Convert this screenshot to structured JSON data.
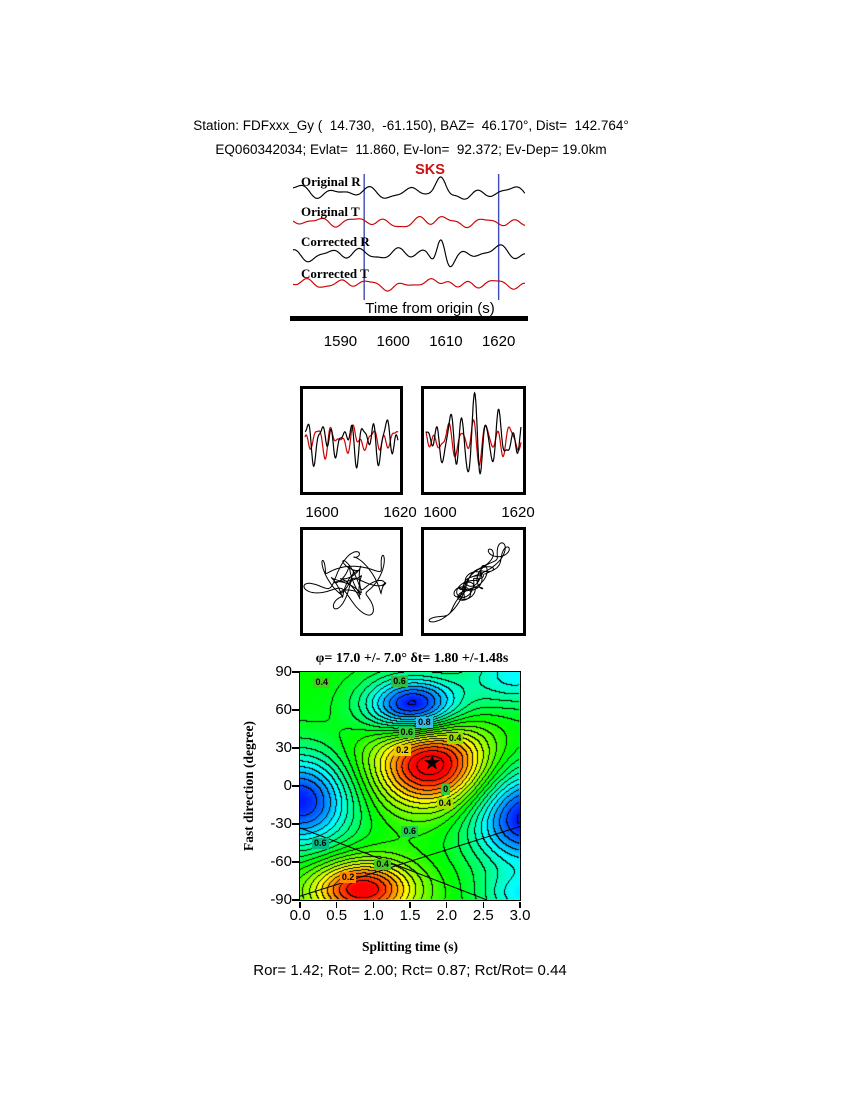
{
  "header": {
    "line1": "Station: FDFxxx_Gy (  14.730,  -61.150), BAZ=  46.170°, Dist=  142.764°",
    "line2": "EQ060342034; Evlat=  11.860, Ev-lon=  92.372; Ev-Dep= 19.0km"
  },
  "waveform_panel": {
    "phase_label": "SKS",
    "phase_color": "#cc1111",
    "xlabel": "Time from origin (s)",
    "traces": [
      {
        "label": "Original R",
        "color": "#000000"
      },
      {
        "label": "Original T",
        "color": "#cc0000"
      },
      {
        "label": "Corrected R",
        "color": "#000000"
      },
      {
        "label": "Corrected T",
        "color": "#cc0000"
      }
    ],
    "time_axis": {
      "min": 1581,
      "max": 1625,
      "ticks": [
        1590,
        1600,
        1610,
        1620
      ]
    },
    "window": [
      1594.5,
      1620.0
    ],
    "window_color": "#3b4bb8"
  },
  "zoom_boxes": {
    "tick_labels": [
      "1600",
      "1620",
      "1600",
      "1620"
    ]
  },
  "contour": {
    "title": "φ= 17.0 +/- 7.0° δt= 1.80 +/-1.48s",
    "xlabel": "Splitting time (s)",
    "ylabel": "Fast direction (degree)",
    "xrange": [
      0,
      3
    ],
    "yrange": [
      -90,
      90
    ],
    "xticks": [
      "0.0",
      "0.5",
      "1.0",
      "1.5",
      "2.0",
      "2.5",
      "3.0"
    ],
    "yticks": [
      90,
      60,
      30,
      0,
      -30,
      -60,
      -90
    ],
    "best": {
      "dt": 1.8,
      "phi": 17
    },
    "field_extrema": [
      {
        "dt": 1.8,
        "phi": 17,
        "amp": 1.15,
        "sdt": 0.55,
        "sphi": 24
      },
      {
        "dt": 0.85,
        "phi": -82,
        "amp": 1.05,
        "sdt": 0.5,
        "sphi": 16
      },
      {
        "dt": 1.55,
        "phi": 63,
        "amp": -1.1,
        "sdt": 0.45,
        "sphi": 16
      },
      {
        "dt": 0.0,
        "phi": -12,
        "amp": -0.95,
        "sdt": 0.5,
        "sphi": 26
      },
      {
        "dt": 3.1,
        "phi": -25,
        "amp": -1.0,
        "sdt": 0.55,
        "sphi": 28
      },
      {
        "dt": 2.95,
        "phi": 88,
        "amp": -0.5,
        "sdt": 0.5,
        "sphi": 18
      },
      {
        "dt": 3.05,
        "phi": -88,
        "amp": -0.45,
        "sdt": 0.4,
        "sphi": 14
      }
    ],
    "contour_labels": [
      {
        "text": "0.4",
        "dt": 0.32,
        "phi": 81,
        "bg": "#44cc22"
      },
      {
        "text": "0.6",
        "dt": 1.38,
        "phi": 82,
        "bg": "#33bb44"
      },
      {
        "text": "0.8",
        "dt": 1.72,
        "phi": 50,
        "bg": "#33bbee"
      },
      {
        "text": "0.6",
        "dt": 1.48,
        "phi": 42,
        "bg": "#33cc33"
      },
      {
        "text": "0.4",
        "dt": 2.14,
        "phi": 37,
        "bg": "#99dd00"
      },
      {
        "text": "0.2",
        "dt": 1.42,
        "phi": 28,
        "bg": "#eecc00"
      },
      {
        "text": "0",
        "dt": 2.06,
        "phi": -3,
        "bg": "#33cc33"
      },
      {
        "text": "0.4",
        "dt": 2.0,
        "phi": -14,
        "bg": "#aadd00"
      },
      {
        "text": "0.6",
        "dt": 1.52,
        "phi": -36,
        "bg": "#22cc55"
      },
      {
        "text": "0.6",
        "dt": 0.3,
        "phi": -46,
        "bg": "#00bb88"
      },
      {
        "text": "0.4",
        "dt": 1.15,
        "phi": -62,
        "bg": "#44cc22"
      },
      {
        "text": "0.2",
        "dt": 0.68,
        "phi": -73,
        "bg": "#ff8800"
      }
    ],
    "null_lines": [
      {
        "x1": 0.0,
        "y1": -87,
        "x2": 3.0,
        "y2": -32
      },
      {
        "x1": 0.0,
        "y1": -33,
        "x2": 2.55,
        "y2": -90
      }
    ]
  },
  "footer": "Ror= 1.42; Rot= 2.00; Rct= 0.87; Rct/Rot= 0.44",
  "chart_data": {
    "type": "composite",
    "figures": [
      {
        "type": "line",
        "name": "seismogram-panel",
        "traces": [
          "Original R",
          "Original T",
          "Corrected R",
          "Corrected T"
        ],
        "phase": "SKS",
        "xlabel": "Time from origin (s)",
        "x_ticks": [
          1590,
          1600,
          1610,
          1620
        ],
        "analysis_window_s": [
          1594.5,
          1620.0
        ]
      },
      {
        "type": "line",
        "name": "windowed-waveform-pair",
        "x_ticks": [
          1600,
          1620
        ],
        "panels": [
          "original R/T overlay",
          "corrected R/T overlay"
        ]
      },
      {
        "type": "scatter",
        "name": "particle-motion",
        "panels": [
          "original (elliptical)",
          "corrected (linearized)"
        ]
      },
      {
        "type": "heatmap",
        "name": "splitting-parameter-map",
        "xlabel": "Splitting time (s)",
        "ylabel": "Fast direction (degree)",
        "xlim": [
          0,
          3
        ],
        "ylim": [
          -90,
          90
        ],
        "x_ticks": [
          0.0,
          0.5,
          1.0,
          1.5,
          2.0,
          2.5,
          3.0
        ],
        "y_ticks": [
          90,
          60,
          30,
          0,
          -30,
          -60,
          -90
        ],
        "best_fit": {
          "phi_deg": 17.0,
          "phi_err_deg": 7.0,
          "dt_s": 1.8,
          "dt_err_s": 1.48
        },
        "labeled_contour_levels": [
          0,
          0.2,
          0.4,
          0.6,
          0.8
        ]
      }
    ],
    "results": {
      "Ror": 1.42,
      "Rot": 2.0,
      "Rct": 0.87,
      "Rct_over_Rot": 0.44
    }
  }
}
